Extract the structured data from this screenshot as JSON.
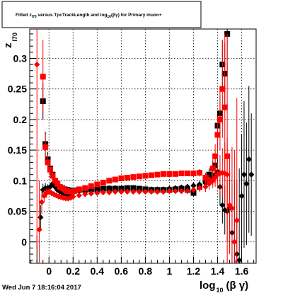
{
  "chart_data": {
    "type": "scatter",
    "title": {
      "prefix": "Fitted  z",
      "prefix_sub": "I70",
      "middle": "  versus  TpcTrackLength and log",
      "middle_sub": "10",
      "suffix": "(βγ) for Primary muon+"
    },
    "xlabel": {
      "main": "log",
      "sub": "10",
      "tail": "(β γ)"
    },
    "ylabel": {
      "main": "z",
      "sub": "I70"
    },
    "xlim": [
      -0.16,
      1.72
    ],
    "ylim": [
      -0.035,
      0.348
    ],
    "x_ticks": [
      0,
      0.2,
      0.4,
      0.6,
      0.8,
      1,
      1.2,
      1.4,
      1.6
    ],
    "x_tick_labels": [
      "0",
      "0.2",
      "0.4",
      "0.6",
      "0.8",
      "1",
      "1.2",
      "1.4",
      "1.6"
    ],
    "y_ticks": [
      0,
      0.05,
      0.1,
      0.15,
      0.2,
      0.25,
      0.3
    ],
    "y_tick_labels": [
      "0",
      "0.05",
      "0.1",
      "0.15",
      "0.2",
      "0.25",
      "0.3"
    ],
    "grid": true,
    "timestamp": "Wed Jun  7 18:16:04 2017",
    "colors": {
      "black_series": "#000000",
      "red_series": "#ff0000"
    },
    "series": [
      {
        "marker": "diamond",
        "color": "#000000",
        "x": [
          -0.1,
          -0.07,
          -0.05,
          -0.03,
          -0.01,
          0.01,
          0.03,
          0.05,
          0.07,
          0.09,
          0.11,
          0.13,
          0.15,
          0.17,
          0.19,
          0.21,
          0.25,
          0.3,
          0.35,
          0.4,
          0.45,
          0.5,
          0.55,
          0.6,
          0.65,
          0.7,
          0.75,
          0.8,
          0.85,
          0.9,
          0.95,
          1.0,
          1.05,
          1.1,
          1.15,
          1.2,
          1.25,
          1.3,
          1.33,
          1.36,
          1.38,
          1.4,
          1.42,
          1.44,
          1.46,
          1.48,
          1.5,
          1.52,
          1.54,
          1.56,
          1.58,
          1.6,
          1.62,
          1.64,
          1.66,
          1.68
        ],
        "y": [
          -0.04,
          0.04,
          0.085,
          0.088,
          0.088,
          0.09,
          0.095,
          0.09,
          0.085,
          0.082,
          0.08,
          0.079,
          0.078,
          0.078,
          0.08,
          0.082,
          0.083,
          0.084,
          0.085,
          0.086,
          0.087,
          0.088,
          0.088,
          0.087,
          0.087,
          0.086,
          0.086,
          0.086,
          0.086,
          0.086,
          0.086,
          0.087,
          0.088,
          0.089,
          0.09,
          0.092,
          0.094,
          0.096,
          0.1,
          0.105,
          0.11,
          0.115,
          0.09,
          0.06,
          0.052,
          0.05,
          0.055,
          0.015,
          0.0,
          -0.02,
          -0.03,
          0.075,
          0.11,
          0.095,
          0.135,
          0.11
        ],
        "err": [
          0.05,
          0.02,
          0.01,
          0.008,
          0.006,
          0.005,
          0.004,
          0.004,
          0.003,
          0.003,
          0.003,
          0.003,
          0.003,
          0.003,
          0.003,
          0.003,
          0.002,
          0.002,
          0.002,
          0.002,
          0.002,
          0.002,
          0.002,
          0.002,
          0.002,
          0.002,
          0.002,
          0.002,
          0.002,
          0.002,
          0.003,
          0.003,
          0.003,
          0.004,
          0.004,
          0.005,
          0.006,
          0.008,
          0.01,
          0.012,
          0.015,
          0.02,
          0.03,
          0.03,
          0.04,
          0.05,
          0.06,
          0.08,
          0.1,
          0.12,
          0.15,
          0.1,
          0.12,
          0.1,
          0.12,
          0.1
        ]
      },
      {
        "marker": "square",
        "color": "#000000",
        "x": [
          -0.05,
          -0.03,
          -0.01,
          0.01,
          0.03,
          0.05,
          0.07,
          0.09,
          0.11,
          0.13,
          0.15,
          0.17,
          0.19,
          0.21,
          0.25,
          0.3,
          0.35,
          0.4,
          0.45,
          0.5,
          0.55,
          0.6,
          0.65,
          0.7,
          0.75,
          0.8,
          0.85,
          0.9,
          0.95,
          1.0,
          1.05,
          1.1,
          1.15,
          1.2,
          1.25,
          1.3,
          1.33,
          1.36,
          1.38,
          1.4,
          1.42,
          1.44,
          1.46,
          1.48
        ],
        "y": [
          0.23,
          0.16,
          0.135,
          0.12,
          0.11,
          0.1,
          0.095,
          0.09,
          0.088,
          0.086,
          0.085,
          0.084,
          0.084,
          0.084,
          0.085,
          0.085,
          0.086,
          0.086,
          0.087,
          0.087,
          0.087,
          0.087,
          0.088,
          0.088,
          0.087,
          0.086,
          0.085,
          0.085,
          0.085,
          0.085,
          0.086,
          0.087,
          0.085,
          0.08,
          0.09,
          0.1,
          0.11,
          0.12,
          0.125,
          0.19,
          0.21,
          0.29,
          0.275,
          0.34
        ],
        "err": [
          0.03,
          0.02,
          0.012,
          0.01,
          0.008,
          0.006,
          0.005,
          0.004,
          0.004,
          0.004,
          0.003,
          0.003,
          0.003,
          0.003,
          0.002,
          0.002,
          0.002,
          0.002,
          0.002,
          0.002,
          0.002,
          0.002,
          0.002,
          0.002,
          0.002,
          0.002,
          0.002,
          0.002,
          0.003,
          0.003,
          0.003,
          0.004,
          0.004,
          0.005,
          0.006,
          0.008,
          0.01,
          0.012,
          0.015,
          0.02,
          0.03,
          0.04,
          0.05,
          0.06
        ]
      },
      {
        "marker": "diamond",
        "color": "#ff0000",
        "x": [
          -0.1,
          -0.08,
          -0.06,
          -0.04,
          -0.02,
          0.0,
          0.02,
          0.04,
          0.06,
          0.08,
          0.1,
          0.12,
          0.14,
          0.16,
          0.18,
          0.2,
          0.25,
          0.3,
          0.35,
          0.4,
          0.45,
          0.5,
          0.55,
          0.6,
          0.65,
          0.7,
          0.75,
          0.8,
          0.85,
          0.9,
          0.95,
          1.0,
          1.05,
          1.1,
          1.15,
          1.2,
          1.25,
          1.3,
          1.33,
          1.36,
          1.38,
          1.4,
          1.42,
          1.44,
          1.46,
          1.48,
          1.5,
          1.52,
          1.54,
          1.56
        ],
        "y": [
          0.29,
          0.02,
          0.065,
          0.075,
          0.08,
          0.082,
          0.08,
          0.078,
          0.076,
          0.074,
          0.073,
          0.072,
          0.071,
          0.071,
          0.072,
          0.074,
          0.076,
          0.078,
          0.079,
          0.08,
          0.081,
          0.081,
          0.082,
          0.082,
          0.082,
          0.082,
          0.082,
          0.082,
          0.082,
          0.082,
          0.082,
          0.083,
          0.083,
          0.083,
          0.083,
          0.085,
          0.088,
          0.09,
          0.095,
          0.1,
          0.105,
          0.11,
          0.112,
          0.113,
          0.112,
          0.11,
          0.06,
          0.055,
          0.0,
          0.035
        ],
        "err": [
          0.3,
          0.08,
          0.02,
          0.01,
          0.008,
          0.006,
          0.005,
          0.005,
          0.004,
          0.004,
          0.004,
          0.004,
          0.003,
          0.003,
          0.003,
          0.003,
          0.002,
          0.002,
          0.002,
          0.002,
          0.002,
          0.002,
          0.002,
          0.002,
          0.002,
          0.002,
          0.002,
          0.002,
          0.002,
          0.002,
          0.003,
          0.003,
          0.003,
          0.004,
          0.004,
          0.005,
          0.006,
          0.008,
          0.01,
          0.012,
          0.015,
          0.02,
          0.03,
          0.04,
          0.05,
          0.06,
          0.08,
          0.1,
          0.15,
          0.2
        ]
      },
      {
        "marker": "square",
        "color": "#ff0000",
        "x": [
          -0.05,
          -0.03,
          -0.01,
          0.01,
          0.03,
          0.05,
          0.07,
          0.09,
          0.11,
          0.13,
          0.15,
          0.17,
          0.19,
          0.21,
          0.25,
          0.3,
          0.35,
          0.4,
          0.45,
          0.5,
          0.55,
          0.6,
          0.65,
          0.7,
          0.75,
          0.8,
          0.85,
          0.9,
          0.95,
          1.0,
          1.05,
          1.1,
          1.15,
          1.2,
          1.25,
          1.3,
          1.33,
          1.36,
          1.38,
          1.4,
          1.42,
          1.44,
          1.46,
          1.48
        ],
        "y": [
          0.27,
          0.155,
          0.13,
          0.118,
          0.108,
          0.1,
          0.095,
          0.09,
          0.088,
          0.085,
          0.083,
          0.082,
          0.082,
          0.083,
          0.086,
          0.088,
          0.091,
          0.094,
          0.097,
          0.1,
          0.102,
          0.104,
          0.105,
          0.106,
          0.107,
          0.108,
          0.109,
          0.11,
          0.111,
          0.111,
          0.111,
          0.112,
          0.112,
          0.112,
          0.113,
          0.105,
          0.1,
          0.12,
          0.14,
          0.175,
          0.2,
          0.25,
          0.22,
          0.14
        ],
        "err": [
          0.06,
          0.02,
          0.012,
          0.01,
          0.008,
          0.006,
          0.005,
          0.004,
          0.004,
          0.004,
          0.003,
          0.003,
          0.003,
          0.003,
          0.002,
          0.002,
          0.002,
          0.002,
          0.002,
          0.002,
          0.002,
          0.002,
          0.002,
          0.002,
          0.002,
          0.002,
          0.002,
          0.002,
          0.003,
          0.003,
          0.003,
          0.004,
          0.004,
          0.005,
          0.006,
          0.008,
          0.01,
          0.015,
          0.02,
          0.03,
          0.05,
          0.08,
          0.12,
          0.2
        ]
      }
    ]
  }
}
